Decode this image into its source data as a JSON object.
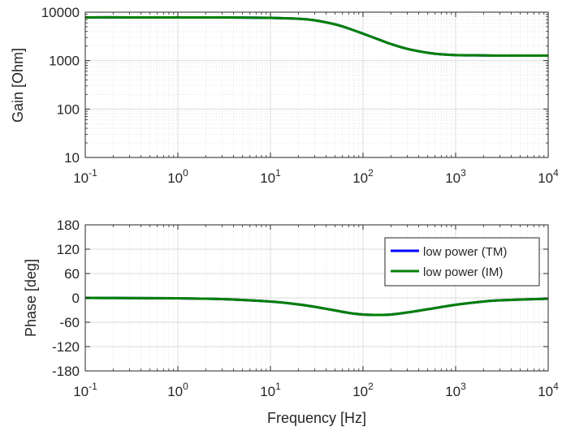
{
  "chart_data": [
    {
      "type": "line",
      "title": "",
      "xlabel": "",
      "ylabel": "Gain [Ohm]",
      "xscale": "log",
      "yscale": "log",
      "xlim": [
        0.1,
        10000
      ],
      "ylim": [
        10,
        10000
      ],
      "grid": true,
      "xticks": [
        0.1,
        1,
        10,
        100,
        1000,
        10000
      ],
      "xtick_labels": [
        {
          "base": "10",
          "exp": "-1"
        },
        {
          "base": "10",
          "exp": "0"
        },
        {
          "base": "10",
          "exp": "1"
        },
        {
          "base": "10",
          "exp": "2"
        },
        {
          "base": "10",
          "exp": "3"
        },
        {
          "base": "10",
          "exp": "4"
        }
      ],
      "yticks": [
        10,
        100,
        1000,
        10000
      ],
      "ytick_labels": [
        "10",
        "100",
        "1000",
        "10000"
      ],
      "series": [
        {
          "name": "low power (TM)",
          "color": "#0000ff",
          "x": [
            0.1,
            0.3,
            1,
            3,
            10,
            20,
            30,
            50,
            70,
            100,
            150,
            200,
            300,
            500,
            700,
            1000,
            2000,
            3000,
            10000
          ],
          "y": [
            7800,
            7800,
            7790,
            7770,
            7650,
            7300,
            6800,
            5600,
            4600,
            3600,
            2700,
            2200,
            1750,
            1450,
            1350,
            1300,
            1280,
            1270,
            1270
          ]
        },
        {
          "name": "low power (IM)",
          "color": "#008000",
          "x": [
            0.1,
            0.3,
            1,
            3,
            10,
            20,
            30,
            50,
            70,
            100,
            150,
            200,
            300,
            500,
            700,
            1000,
            2000,
            3000,
            10000
          ],
          "y": [
            7800,
            7800,
            7790,
            7770,
            7650,
            7300,
            6800,
            5600,
            4600,
            3600,
            2700,
            2200,
            1750,
            1450,
            1350,
            1300,
            1280,
            1270,
            1270
          ]
        }
      ]
    },
    {
      "type": "line",
      "title": "",
      "xlabel": "Frequency [Hz]",
      "ylabel": "Phase [deg]",
      "xscale": "log",
      "yscale": "linear",
      "xlim": [
        0.1,
        10000
      ],
      "ylim": [
        -180,
        180
      ],
      "grid": true,
      "legend_position": "top-right",
      "xticks": [
        0.1,
        1,
        10,
        100,
        1000,
        10000
      ],
      "xtick_labels": [
        {
          "base": "10",
          "exp": "-1"
        },
        {
          "base": "10",
          "exp": "0"
        },
        {
          "base": "10",
          "exp": "1"
        },
        {
          "base": "10",
          "exp": "2"
        },
        {
          "base": "10",
          "exp": "3"
        },
        {
          "base": "10",
          "exp": "4"
        }
      ],
      "yticks": [
        -180,
        -120,
        -60,
        0,
        60,
        120,
        180
      ],
      "ytick_labels": [
        "-180",
        "-120",
        "-60",
        "0",
        "60",
        "120",
        "180"
      ],
      "series": [
        {
          "name": "low power (TM)",
          "color": "#0000ff",
          "x": [
            0.1,
            0.3,
            1,
            3,
            10,
            20,
            30,
            50,
            70,
            100,
            150,
            200,
            300,
            500,
            1000,
            2000,
            3000,
            10000
          ],
          "y": [
            0,
            -0.5,
            -1,
            -3,
            -9,
            -16,
            -22,
            -31,
            -37,
            -41,
            -42,
            -41,
            -36,
            -28,
            -17,
            -9,
            -6,
            -2
          ]
        },
        {
          "name": "low power (IM)",
          "color": "#008000",
          "x": [
            0.1,
            0.3,
            1,
            3,
            10,
            20,
            30,
            50,
            70,
            100,
            150,
            200,
            300,
            500,
            1000,
            2000,
            3000,
            10000
          ],
          "y": [
            0,
            -0.5,
            -1,
            -3,
            -9,
            -16,
            -22,
            -31,
            -37,
            -41,
            -42,
            -41,
            -36,
            -28,
            -17,
            -9,
            -6,
            -2
          ]
        }
      ]
    }
  ]
}
